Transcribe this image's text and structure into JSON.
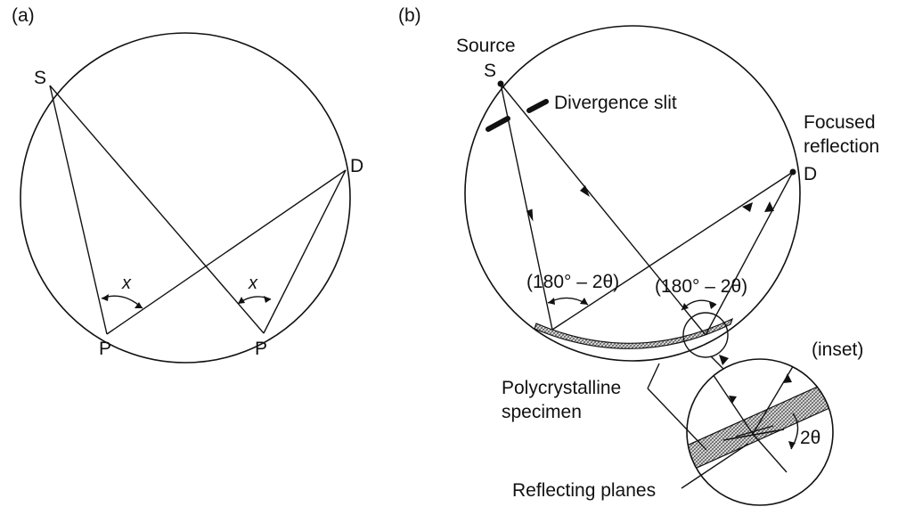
{
  "panel_a": {
    "label": "(a)",
    "points": {
      "s": "S",
      "d": "D",
      "p1": "P",
      "p2": "P"
    },
    "angle_labels": [
      "x",
      "x"
    ]
  },
  "panel_b": {
    "label": "(b)",
    "source_label": "Source",
    "s": "S",
    "d": "D",
    "divergence_slit": "Divergence slit",
    "focused_reflection_line1": "Focused",
    "focused_reflection_line2": "reflection",
    "angle_left": "(180° – 2θ)",
    "angle_right": "(180° – 2θ)",
    "inset_label": "(inset)",
    "specimen_line1": "Polycrystalline",
    "specimen_line2": "specimen",
    "reflecting_planes": "Reflecting planes",
    "two_theta": "2θ"
  },
  "colors": {
    "ink": "#111111",
    "background": "#ffffff",
    "specimen_hatch": "#9a9a9a"
  }
}
